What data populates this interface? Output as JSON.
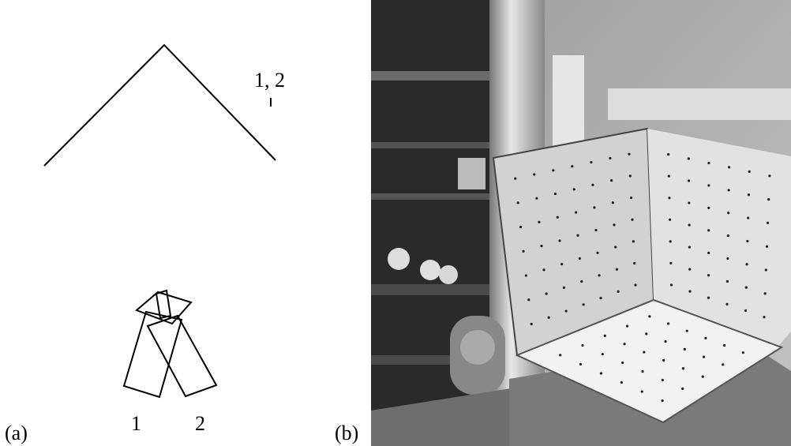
{
  "panel_a": {
    "label": "(a)",
    "camera_pair_label": "1, 2",
    "camera_labels": [
      "1",
      "2"
    ]
  },
  "panel_b": {
    "label": "(b)"
  }
}
